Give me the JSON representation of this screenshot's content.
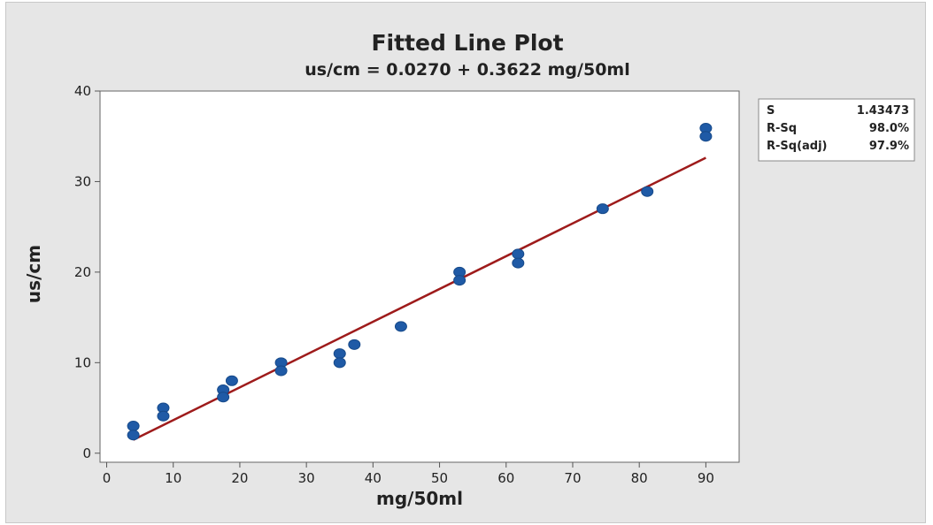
{
  "chart_data": {
    "type": "scatter",
    "title": "Fitted Line Plot",
    "subtitle": "us/cm = 0.0270 + 0.3622 mg/50ml",
    "xlabel": "mg/50ml",
    "ylabel": "us/cm",
    "xlim": [
      -1,
      95
    ],
    "ylim": [
      -1,
      40
    ],
    "xticks": [
      0,
      10,
      20,
      30,
      40,
      50,
      60,
      70,
      80,
      90
    ],
    "yticks": [
      0,
      10,
      20,
      30,
      40
    ],
    "grid": false,
    "series": [
      {
        "type": "scatter",
        "color": "#1f5aa6",
        "points": [
          [
            4,
            3
          ],
          [
            4,
            2
          ],
          [
            8.5,
            5
          ],
          [
            8.5,
            4.1
          ],
          [
            17.5,
            7
          ],
          [
            17.5,
            6.2
          ],
          [
            18.8,
            8
          ],
          [
            26.2,
            10
          ],
          [
            26.2,
            9.1
          ],
          [
            35,
            11
          ],
          [
            35,
            10
          ],
          [
            37.2,
            12
          ],
          [
            44.2,
            14
          ],
          [
            53,
            20
          ],
          [
            53,
            19.1
          ],
          [
            61.8,
            22
          ],
          [
            61.8,
            21
          ],
          [
            74.5,
            27
          ],
          [
            81.2,
            28.9
          ],
          [
            90,
            35.9
          ],
          [
            90,
            35
          ]
        ]
      },
      {
        "type": "line",
        "color": "#9e1b1b",
        "intercept": 0.027,
        "slope": 0.3622,
        "x_range": [
          4,
          90
        ]
      }
    ],
    "stats": [
      {
        "label": "S",
        "value": "1.43473"
      },
      {
        "label": "R-Sq",
        "value": "98.0%"
      },
      {
        "label": "R-Sq(adj)",
        "value": "97.9%"
      }
    ]
  }
}
